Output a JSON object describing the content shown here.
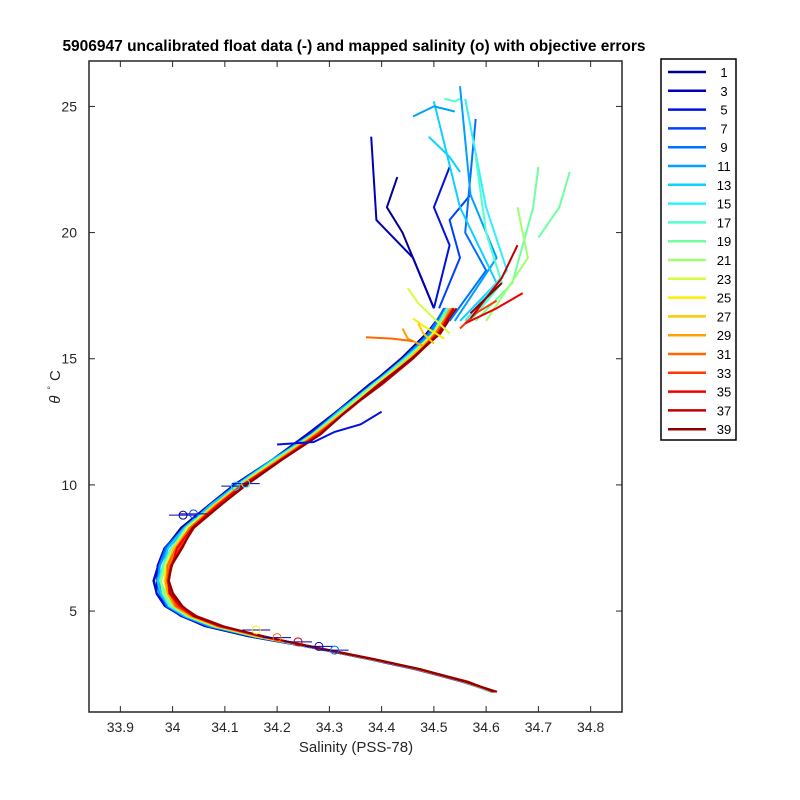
{
  "chart_data": {
    "type": "line",
    "title": "5906947 uncalibrated float data (-) and mapped salinity (o) with objective errors",
    "xlabel": "Salinity (PSS-78)",
    "ylabel_symbol": "θ",
    "ylabel_unit": "C",
    "xlim": [
      33.84,
      34.86
    ],
    "ylim": [
      1.0,
      26.8
    ],
    "xticks": [
      33.9,
      34,
      34.1,
      34.2,
      34.3,
      34.4,
      34.5,
      34.6,
      34.7,
      34.8
    ],
    "xtick_labels": [
      "33.9",
      "34",
      "34.1",
      "34.2",
      "34.3",
      "34.4",
      "34.5",
      "34.6",
      "34.7",
      "34.8"
    ],
    "yticks": [
      5,
      10,
      15,
      20,
      25
    ],
    "ytick_labels": [
      "5",
      "10",
      "15",
      "20",
      "25"
    ],
    "grid": false,
    "legend_position": "outside-right",
    "legend": [
      {
        "label": "1",
        "color": "#000090"
      },
      {
        "label": "3",
        "color": "#0000b8"
      },
      {
        "label": "5",
        "color": "#0010e0"
      },
      {
        "label": "7",
        "color": "#0040ff"
      },
      {
        "label": "9",
        "color": "#0070ff"
      },
      {
        "label": "11",
        "color": "#00a0ff"
      },
      {
        "label": "13",
        "color": "#10d0ff"
      },
      {
        "label": "15",
        "color": "#30f0ff"
      },
      {
        "label": "17",
        "color": "#50ffd0"
      },
      {
        "label": "19",
        "color": "#70ffa0"
      },
      {
        "label": "21",
        "color": "#a0ff70"
      },
      {
        "label": "23",
        "color": "#d0ff40"
      },
      {
        "label": "25",
        "color": "#f8f000"
      },
      {
        "label": "27",
        "color": "#ffc800"
      },
      {
        "label": "29",
        "color": "#ffa000"
      },
      {
        "label": "31",
        "color": "#ff6800"
      },
      {
        "label": "33",
        "color": "#ff3800"
      },
      {
        "label": "35",
        "color": "#f00000"
      },
      {
        "label": "37",
        "color": "#c00000"
      },
      {
        "label": "39",
        "color": "#900000"
      }
    ],
    "mean_profile": {
      "s": [
        34.615,
        34.56,
        34.47,
        34.38,
        34.26,
        34.16,
        34.08,
        34.03,
        34.0,
        33.985,
        33.98,
        33.985,
        34.0,
        34.03,
        34.08,
        34.13,
        34.2,
        34.27,
        34.33,
        34.39,
        34.45,
        34.5,
        34.53
      ],
      "t": [
        1.8,
        2.2,
        2.7,
        3.1,
        3.6,
        4.0,
        4.4,
        4.8,
        5.2,
        5.7,
        6.2,
        6.8,
        7.5,
        8.3,
        9.2,
        10.0,
        11.0,
        12.0,
        13.0,
        14.0,
        15.0,
        16.0,
        17.0
      ]
    },
    "mapped_salinity": [
      {
        "s": 34.02,
        "t": 8.8
      },
      {
        "s": 34.04,
        "t": 8.85
      },
      {
        "s": 34.12,
        "t": 9.95
      },
      {
        "s": 34.14,
        "t": 10.05
      },
      {
        "s": 34.16,
        "t": 4.25
      },
      {
        "s": 34.2,
        "t": 3.95
      },
      {
        "s": 34.24,
        "t": 3.78
      },
      {
        "s": 34.28,
        "t": 3.6
      },
      {
        "s": 34.31,
        "t": 3.45
      }
    ],
    "upper_profiles": [
      {
        "idx": 0,
        "pts": [
          [
            34.5,
            17.0
          ],
          [
            34.44,
            20.0
          ],
          [
            34.41,
            21.0
          ],
          [
            34.43,
            22.2
          ]
        ]
      },
      {
        "idx": 1,
        "pts": [
          [
            34.5,
            17.0
          ],
          [
            34.46,
            19.0
          ],
          [
            34.39,
            20.5
          ],
          [
            34.38,
            23.8
          ]
        ]
      },
      {
        "idx": 2,
        "pts": [
          [
            34.5,
            17.0
          ],
          [
            34.53,
            19.5
          ],
          [
            34.5,
            21.0
          ],
          [
            34.53,
            22.6
          ]
        ]
      },
      {
        "idx": 3,
        "pts": [
          [
            34.51,
            17.0
          ],
          [
            34.55,
            19.0
          ],
          [
            34.53,
            20.5
          ],
          [
            34.57,
            21.5
          ]
        ]
      },
      {
        "idx": 4,
        "pts": [
          [
            34.53,
            16.5
          ],
          [
            34.6,
            18.5
          ],
          [
            34.56,
            20.0
          ],
          [
            34.58,
            24.5
          ]
        ]
      },
      {
        "idx": 5,
        "pts": [
          [
            34.54,
            16.5
          ],
          [
            34.62,
            19.0
          ],
          [
            34.57,
            21.5
          ],
          [
            34.55,
            25.8
          ]
        ]
      },
      {
        "idx": 6,
        "pts": [
          [
            34.55,
            16.5
          ],
          [
            34.62,
            18.0
          ],
          [
            34.55,
            21.0
          ],
          [
            34.5,
            25.2
          ]
        ]
      },
      {
        "idx": 7,
        "pts": [
          [
            34.56,
            16.5
          ],
          [
            34.64,
            18.5
          ],
          [
            34.6,
            21.0
          ],
          [
            34.56,
            25.3
          ]
        ]
      },
      {
        "idx": 8,
        "pts": [
          [
            34.57,
            16.5
          ],
          [
            34.63,
            18.0
          ],
          [
            34.6,
            20.0
          ],
          [
            34.58,
            23.0
          ]
        ]
      },
      {
        "idx": 9,
        "pts": [
          [
            34.58,
            16.5
          ],
          [
            34.65,
            18.0
          ],
          [
            34.69,
            21.0
          ],
          [
            34.7,
            22.6
          ]
        ]
      },
      {
        "idx": 10,
        "pts": [
          [
            34.6,
            16.5
          ],
          [
            34.68,
            19.0
          ],
          [
            34.66,
            21.0
          ]
        ]
      },
      {
        "idx": 11,
        "pts": [
          [
            34.53,
            16.0
          ],
          [
            34.47,
            17.2
          ],
          [
            34.45,
            17.8
          ]
        ]
      },
      {
        "idx": 12,
        "pts": [
          [
            34.52,
            15.8
          ],
          [
            34.48,
            16.3
          ],
          [
            34.46,
            16.6
          ]
        ]
      },
      {
        "idx": 13,
        "pts": [
          [
            34.5,
            15.6
          ],
          [
            34.48,
            16.0
          ],
          [
            34.47,
            16.4
          ]
        ]
      },
      {
        "idx": 14,
        "pts": [
          [
            34.48,
            15.5
          ],
          [
            34.45,
            15.8
          ],
          [
            34.44,
            16.2
          ]
        ]
      },
      {
        "idx": 15,
        "pts": [
          [
            34.46,
            15.7
          ],
          [
            34.42,
            15.8
          ],
          [
            34.37,
            15.85
          ]
        ]
      },
      {
        "idx": 16,
        "pts": [
          [
            34.55,
            16.2
          ],
          [
            34.58,
            16.8
          ],
          [
            34.62,
            17.3
          ]
        ]
      },
      {
        "idx": 17,
        "pts": [
          [
            34.56,
            16.4
          ],
          [
            34.62,
            17.0
          ],
          [
            34.67,
            17.6
          ]
        ]
      },
      {
        "idx": 18,
        "pts": [
          [
            34.57,
            16.6
          ],
          [
            34.63,
            18.2
          ],
          [
            34.66,
            19.5
          ]
        ]
      },
      {
        "idx": 19,
        "pts": [
          [
            34.57,
            16.8
          ],
          [
            34.6,
            17.4
          ],
          [
            34.63,
            18.0
          ]
        ]
      }
    ],
    "top_segments": [
      {
        "idx": 5,
        "pts": [
          [
            34.46,
            24.6
          ],
          [
            34.5,
            25.0
          ],
          [
            34.54,
            24.8
          ]
        ]
      },
      {
        "idx": 6,
        "pts": [
          [
            34.49,
            23.8
          ],
          [
            34.53,
            23.0
          ],
          [
            34.55,
            22.4
          ]
        ]
      },
      {
        "idx": 8,
        "pts": [
          [
            34.52,
            25.3
          ],
          [
            34.54,
            25.2
          ],
          [
            34.55,
            25.3
          ]
        ]
      },
      {
        "idx": 9,
        "pts": [
          [
            34.7,
            19.8
          ],
          [
            34.74,
            21.0
          ],
          [
            34.76,
            22.4
          ]
        ]
      }
    ]
  }
}
